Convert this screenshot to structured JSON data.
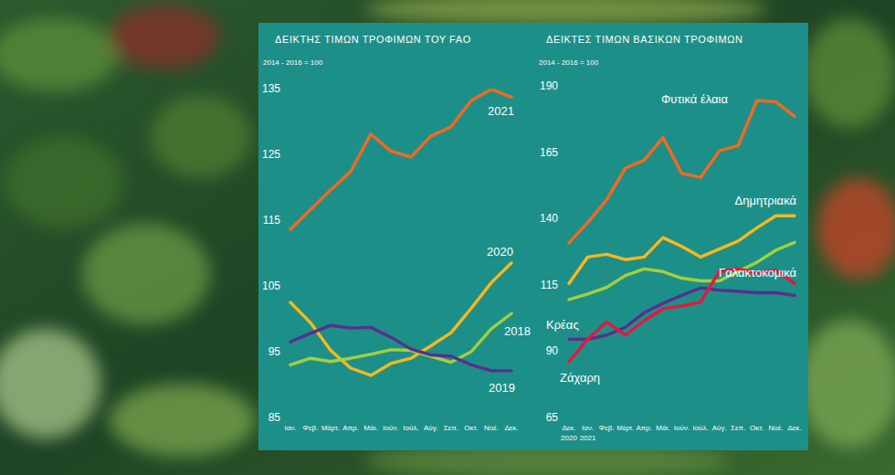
{
  "chart_data": [
    {
      "type": "line",
      "title": "ΔΕΙΚΤΗΣ ΤΙΜΩΝ ΤΡΟΦΙΜΩΝ ΤΟΥ FAO",
      "subtitle": "2014 - 2016 = 100",
      "categories": [
        "Ιαν.",
        "Φεβ.",
        "Μάρτ.",
        "Απρ.",
        "Μάι.",
        "Ιούν.",
        "Ιούλ.",
        "Αύγ.",
        "Σεπ.",
        "Οκτ.",
        "Νοέ.",
        "Δεκ."
      ],
      "series": [
        {
          "name": "2021",
          "color": "#f26a1e",
          "values": [
            113.6,
            116.6,
            119.6,
            122.4,
            128.1,
            125.5,
            124.6,
            127.8,
            129.2,
            133.2,
            134.9,
            133.7
          ]
        },
        {
          "name": "2020",
          "color": "#f8b81c",
          "values": [
            102.5,
            99.4,
            95.2,
            92.5,
            91.4,
            93.2,
            94.0,
            95.9,
            97.9,
            101.6,
            105.5,
            108.5
          ]
        },
        {
          "name": "2018",
          "color": "#a5cf3c",
          "values": [
            93.0,
            94.0,
            93.5,
            94.0,
            94.6,
            95.3,
            95.2,
            94.3,
            93.4,
            95.0,
            98.5,
            100.8
          ]
        },
        {
          "name": "2019",
          "color": "#5a2e8c",
          "values": [
            96.5,
            97.8,
            99.0,
            98.6,
            98.7,
            97.2,
            95.4,
            94.5,
            94.3,
            93.0,
            92.1,
            92.1
          ]
        }
      ],
      "ylim": [
        85,
        135
      ],
      "yticks": [
        85,
        95,
        105,
        115,
        125,
        135
      ],
      "grid": false
    },
    {
      "type": "line",
      "title": "ΔΕΙΚΤΕΣ ΤΙΜΩΝ ΒΑΣΙΚΩΝ ΤΡΟΦΙΜΩΝ",
      "subtitle": "2014 - 2016 = 100",
      "categories": [
        "Δεκ. 2020",
        "Ιαν. 2021",
        "Φεβ.",
        "Μάρτ.",
        "Απρ.",
        "Μάι.",
        "Ιούν.",
        "Ιούλ.",
        "Αύγ.",
        "Σεπ.",
        "Οκτ.",
        "Νοέ.",
        "Δεκ."
      ],
      "series": [
        {
          "name": "Φυτικά έλαια",
          "color": "#f26a1e",
          "values": [
            130.8,
            138.5,
            147.0,
            159.0,
            162.0,
            170.5,
            157.0,
            155.5,
            165.5,
            167.5,
            184.5,
            184.0,
            178.5
          ]
        },
        {
          "name": "Δημητριακά",
          "color": "#f8b81c",
          "values": [
            115.5,
            125.5,
            126.5,
            124.5,
            125.5,
            132.8,
            129.5,
            125.5,
            128.5,
            131.5,
            136.5,
            141.0,
            141.0
          ]
        },
        {
          "name": "Γαλακτοκομικά",
          "color": "#a5cf3c",
          "values": [
            109.5,
            111.5,
            114.0,
            118.5,
            121.0,
            120.0,
            117.5,
            116.5,
            116.5,
            120.0,
            123.5,
            128.0,
            131.0
          ]
        },
        {
          "name": "Κρέας",
          "color": "#5a2e8c",
          "values": [
            94.5,
            94.5,
            96.0,
            99.0,
            104.5,
            108.0,
            111.0,
            113.8,
            113.0,
            112.5,
            112.0,
            112.0,
            111.0
          ]
        },
        {
          "name": "Ζάχαρη",
          "color": "#e5173f",
          "values": [
            86.0,
            94.5,
            101.0,
            96.0,
            101.5,
            106.0,
            107.0,
            108.5,
            120.0,
            121.0,
            119.5,
            120.5,
            115.5
          ]
        }
      ],
      "ylim": [
        65,
        190
      ],
      "yticks": [
        65,
        90,
        115,
        140,
        165,
        190
      ],
      "grid": false
    }
  ]
}
